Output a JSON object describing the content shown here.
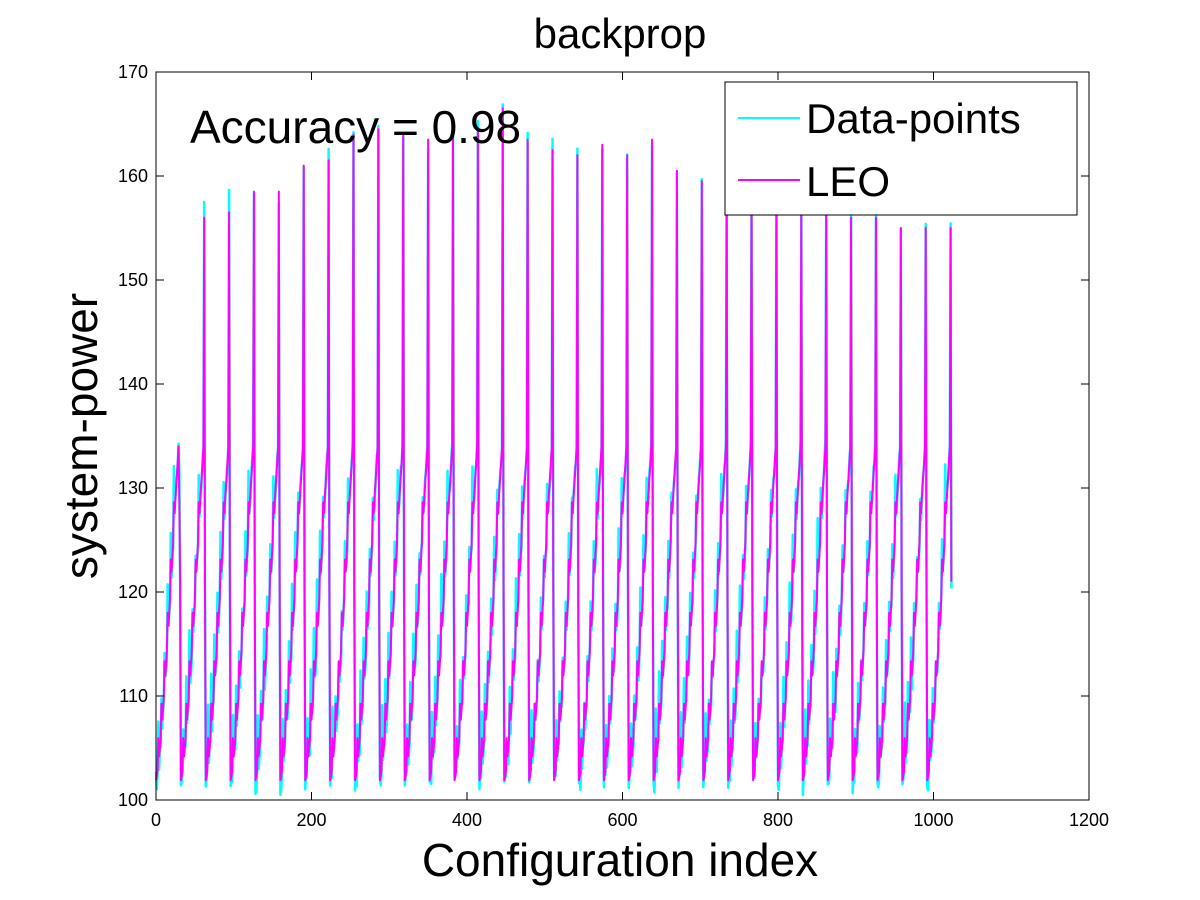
{
  "chart_data": {
    "type": "line",
    "title": "backprop",
    "xlabel": "Configuration index",
    "ylabel": "system-power",
    "xlim": [
      0,
      1200
    ],
    "ylim": [
      100,
      170
    ],
    "xticks": [
      "0",
      "200",
      "400",
      "600",
      "800",
      "1000",
      "1200"
    ],
    "yticks": [
      "100",
      "110",
      "120",
      "130",
      "140",
      "150",
      "160",
      "170"
    ],
    "annotation": "Accuracy = 0.98",
    "legend": {
      "placement": "top-right"
    },
    "grid": false,
    "n_points": 1024,
    "sawtooth_period": 32,
    "series": [
      {
        "name": "Data-points",
        "color": "#00ffff",
        "peaks": [
          131,
          157,
          158,
          159,
          158,
          161,
          162,
          164,
          165,
          164,
          163,
          165,
          165,
          167,
          164,
          163,
          162,
          163,
          162,
          163,
          161,
          160,
          160,
          159,
          158,
          157,
          157,
          156,
          156,
          155,
          155,
          155
        ]
      },
      {
        "name": "LEO",
        "color": "#ff00ff",
        "peaks": [
          129,
          156,
          156.5,
          158.5,
          158.5,
          161,
          161.5,
          164,
          164.5,
          164,
          163.5,
          164,
          164.5,
          166.5,
          163.5,
          162.5,
          162,
          163,
          162,
          163.5,
          160.5,
          159.5,
          159.5,
          158.5,
          157.5,
          157,
          156.5,
          156,
          156,
          155,
          155,
          155
        ]
      }
    ]
  }
}
